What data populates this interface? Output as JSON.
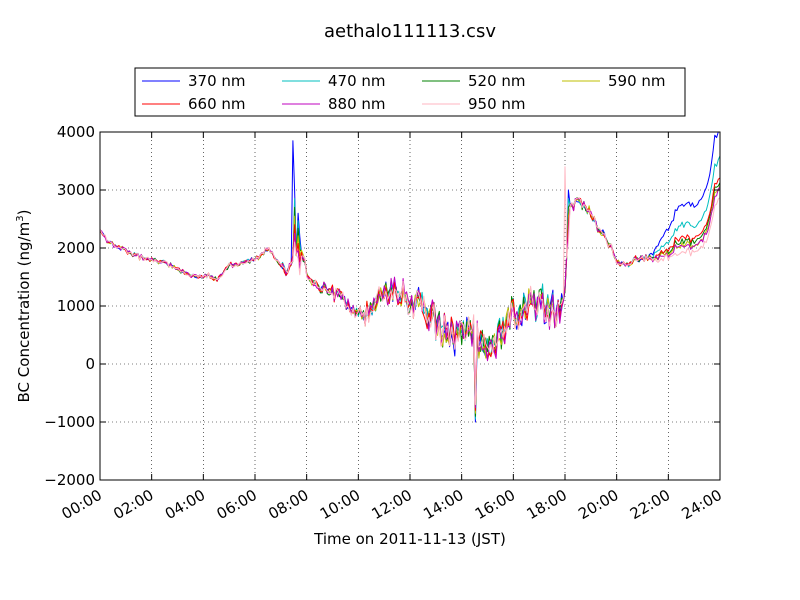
{
  "chart_data": {
    "type": "line",
    "title": "aethalo111113.csv",
    "xlabel": "Time on 2011-11-13 (JST)",
    "ylabel": "BC Concentration (ng/m",
    "ylabel_sup": "3",
    "ylabel_tail": ")",
    "xlim": [
      0,
      24
    ],
    "ylim": [
      -2000,
      4000
    ],
    "x_ticks": [
      0,
      2,
      4,
      6,
      8,
      10,
      12,
      14,
      16,
      18,
      20,
      22,
      24
    ],
    "x_tick_labels": [
      "00:00",
      "02:00",
      "04:00",
      "06:00",
      "08:00",
      "10:00",
      "12:00",
      "14:00",
      "16:00",
      "18:00",
      "20:00",
      "22:00",
      "24:00"
    ],
    "y_ticks": [
      -2000,
      -1000,
      0,
      1000,
      2000,
      3000,
      4000
    ],
    "y_tick_labels": [
      "−2000",
      "−1000",
      "0",
      "1000",
      "2000",
      "3000",
      "4000"
    ],
    "grid": true,
    "legend_position": "top-center",
    "legend_columns": 4,
    "series": [
      {
        "name": "370 nm",
        "color": "#0000ff"
      },
      {
        "name": "470 nm",
        "color": "#00bfbf"
      },
      {
        "name": "520 nm",
        "color": "#008000"
      },
      {
        "name": "590 nm",
        "color": "#bfbf00"
      },
      {
        "name": "660 nm",
        "color": "#ff0000"
      },
      {
        "name": "880 nm",
        "color": "#bf00bf"
      },
      {
        "name": "950 nm",
        "color": "#ffb6c1"
      }
    ],
    "base_profile": {
      "x": [
        0,
        0.3,
        0.7,
        1,
        1.5,
        2,
        2.5,
        3,
        3.5,
        4,
        4.2,
        4.5,
        5,
        5.5,
        6,
        6.3,
        6.5,
        7,
        7.3,
        7.5,
        7.7,
        7.9,
        8,
        8.3,
        8.7,
        9,
        9.3,
        9.6,
        10,
        10.3,
        10.7,
        11,
        11.5,
        12,
        12.3,
        12.7,
        13,
        13.3,
        13.7,
        14,
        14.3,
        14.7,
        15,
        15.3,
        15.7,
        16,
        16.3,
        16.7,
        17,
        17.5,
        17.9,
        18,
        18.1,
        18.2,
        18.5,
        18.8,
        19,
        19.2,
        19.5,
        19.8,
        20,
        20.3,
        20.7,
        21,
        21.3,
        21.7,
        22,
        22.3,
        22.7,
        23,
        23.3,
        23.6,
        23.8,
        24
      ],
      "y": [
        2300,
        2100,
        2000,
        1950,
        1850,
        1800,
        1750,
        1650,
        1550,
        1500,
        1550,
        1450,
        1700,
        1750,
        1800,
        1900,
        2000,
        1700,
        1600,
        1800,
        2000,
        1800,
        1600,
        1400,
        1300,
        1200,
        1150,
        1000,
        900,
        800,
        1100,
        1200,
        1300,
        1100,
        1000,
        900,
        800,
        600,
        500,
        400,
        500,
        450,
        400,
        500,
        700,
        800,
        900,
        1000,
        1050,
        1000,
        950,
        1300,
        2100,
        2700,
        2800,
        2700,
        2600,
        2400,
        2200,
        2000,
        1750,
        1700,
        1800,
        1850,
        1800,
        1850,
        1900,
        2000,
        2050,
        2000,
        2100,
        2400,
        2900,
        3000
      ]
    },
    "features": {
      "x": [
        7.45,
        7.55,
        7.65,
        7.75,
        14.5,
        14.55,
        18.0,
        18.1
      ],
      "y": [
        3850,
        3000,
        2600,
        2200,
        -1150,
        -1000,
        3400,
        3000
      ]
    }
  }
}
